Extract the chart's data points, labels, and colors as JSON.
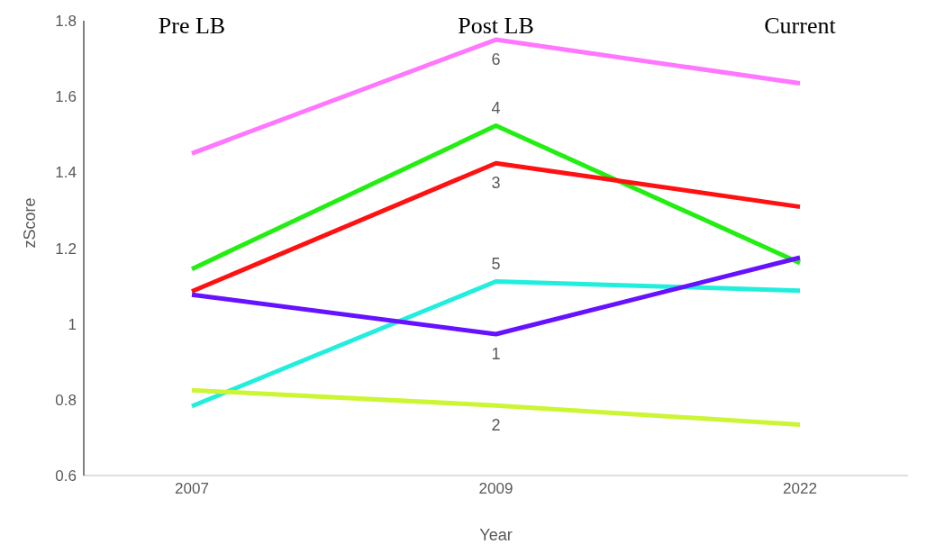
{
  "chart_data": {
    "type": "line",
    "xlabel": "Year",
    "ylabel": "zScore",
    "categories": [
      "2007",
      "2009",
      "2022"
    ],
    "ylim": [
      0.6,
      1.8
    ],
    "yticks": [
      0.6,
      0.8,
      1,
      1.2,
      1.4,
      1.6,
      1.8
    ],
    "grid": false,
    "legend": false,
    "marker": "none",
    "line_style": "solid",
    "annotations": [
      "Pre LB",
      "Post LB",
      "Current"
    ],
    "series": [
      {
        "name": "6",
        "color": "#ff77ff",
        "values": [
          1.45,
          1.75,
          1.635
        ]
      },
      {
        "name": "4",
        "color": "#22ee11",
        "values": [
          1.145,
          1.523,
          1.161
        ]
      },
      {
        "name": "3",
        "color": "#ff1111",
        "values": [
          1.086,
          1.424,
          1.309
        ]
      },
      {
        "name": "5",
        "color": "#22eedd",
        "values": [
          0.783,
          1.112,
          1.088
        ]
      },
      {
        "name": "1",
        "color": "#6611ff",
        "values": [
          1.077,
          0.973,
          1.175
        ]
      },
      {
        "name": "2",
        "color": "#ccf533",
        "values": [
          0.825,
          0.785,
          0.734
        ]
      }
    ]
  }
}
